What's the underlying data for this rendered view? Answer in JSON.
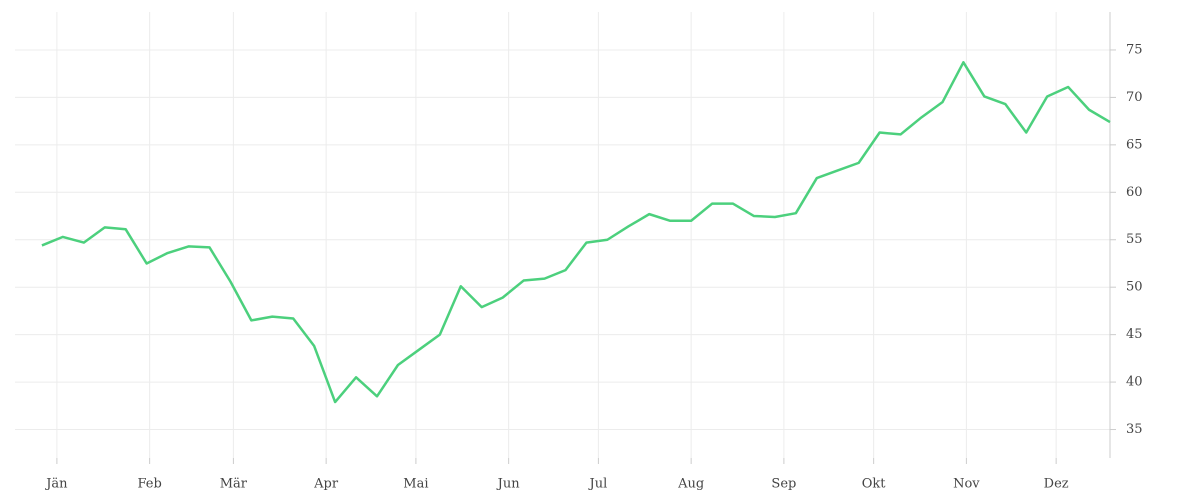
{
  "chart_data": {
    "type": "line",
    "x": [
      -5,
      2,
      9,
      16,
      23,
      30,
      37,
      44,
      51,
      58,
      65,
      72,
      79,
      86,
      93,
      100,
      107,
      114,
      121,
      128,
      135,
      142,
      149,
      156,
      163,
      170,
      177,
      184,
      191,
      198,
      205,
      212,
      219,
      226,
      233,
      240,
      247,
      254,
      261,
      268,
      275,
      282,
      289,
      296,
      303,
      310,
      317,
      324,
      331,
      338,
      345,
      352
    ],
    "series": [
      {
        "color": "#4cd07d",
        "values": [
          54.4,
          55.3,
          54.7,
          56.3,
          56.1,
          52.5,
          53.6,
          54.3,
          54.2,
          50.6,
          46.5,
          46.9,
          46.7,
          43.8,
          37.9,
          40.5,
          38.5,
          41.8,
          43.4,
          45.0,
          50.1,
          47.9,
          48.9,
          50.7,
          50.9,
          51.8,
          54.7,
          55.0,
          56.4,
          57.7,
          57.0,
          57.0,
          58.8,
          58.8,
          57.5,
          57.4,
          57.8,
          61.5,
          62.3,
          63.1,
          66.3,
          66.1,
          67.9,
          69.5,
          73.7,
          70.1,
          69.3,
          66.3,
          70.1,
          71.1,
          68.7,
          67.4
        ]
      }
    ],
    "xlim": [
      -14,
      352
    ],
    "xticks": [
      {
        "value": 0,
        "label": "Jän"
      },
      {
        "value": 31,
        "label": "Feb"
      },
      {
        "value": 59,
        "label": "Mär"
      },
      {
        "value": 90,
        "label": "Apr"
      },
      {
        "value": 120,
        "label": "Mai"
      },
      {
        "value": 151,
        "label": "Jun"
      },
      {
        "value": 181,
        "label": "Jul"
      },
      {
        "value": 212,
        "label": "Aug"
      },
      {
        "value": 243,
        "label": "Sep"
      },
      {
        "value": 273,
        "label": "Okt"
      },
      {
        "value": 304,
        "label": "Nov"
      },
      {
        "value": 334,
        "label": "Dez"
      }
    ],
    "ylim": [
      32,
      79
    ],
    "yticks": [
      35,
      40,
      45,
      50,
      55,
      60,
      65,
      70,
      75
    ],
    "grid": true
  }
}
